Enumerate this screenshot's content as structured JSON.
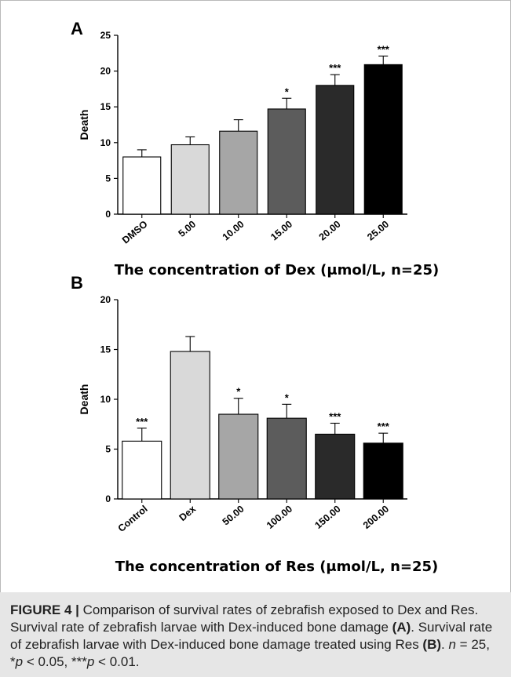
{
  "chart_data": [
    {
      "type": "bar",
      "panel": "A",
      "categories": [
        "DMSO",
        "5.00",
        "10.00",
        "15.00",
        "20.00",
        "25.00"
      ],
      "values": [
        8.0,
        9.7,
        11.6,
        14.7,
        18.0,
        20.9
      ],
      "errors": [
        1.0,
        1.1,
        1.6,
        1.5,
        1.5,
        1.2
      ],
      "significance": [
        "",
        "",
        "",
        "*",
        "***",
        "***"
      ],
      "colors": [
        "#ffffff",
        "#d9d9d9",
        "#a6a6a6",
        "#5c5c5c",
        "#2a2a2a",
        "#000000"
      ],
      "ylabel": "Death",
      "xlabel": "The concentration of Dex (μmol/L,  n=25)",
      "ylim": [
        0,
        25
      ],
      "yticks": [
        0,
        5,
        10,
        15,
        20,
        25
      ],
      "grid": false
    },
    {
      "type": "bar",
      "panel": "B",
      "categories": [
        "Control",
        "Dex",
        "50.00",
        "100.00",
        "150.00",
        "200.00"
      ],
      "values": [
        5.8,
        14.8,
        8.5,
        8.1,
        6.5,
        5.6
      ],
      "errors": [
        1.3,
        1.5,
        1.6,
        1.4,
        1.1,
        1.0
      ],
      "significance": [
        "***",
        "",
        "*",
        "*",
        "***",
        "***"
      ],
      "colors": [
        "#ffffff",
        "#d9d9d9",
        "#a6a6a6",
        "#5c5c5c",
        "#2a2a2a",
        "#000000"
      ],
      "ylabel": "Death",
      "xlabel": "The concentration of Res (μmol/L,  n=25)",
      "ylim": [
        0,
        20
      ],
      "yticks": [
        0,
        5,
        10,
        15,
        20
      ],
      "grid": false
    }
  ],
  "caption": {
    "label": "FIGURE 4 |",
    "body_1": " Comparison of survival rates of zebrafish exposed to Dex and Res. Survival rate of zebrafish larvae with Dex-induced bone damage ",
    "panel_a": "(A)",
    "body_2": ". Survival rate of zebrafish larvae with Dex-induced bone damage treated using Res ",
    "panel_b": "(B)",
    "body_3": ". ",
    "n_var": "n",
    "body_4": " = 25, *",
    "p_var_1": "p",
    "body_5": " < 0.05, ***",
    "p_var_2": "p",
    "body_6": " < 0.01."
  }
}
